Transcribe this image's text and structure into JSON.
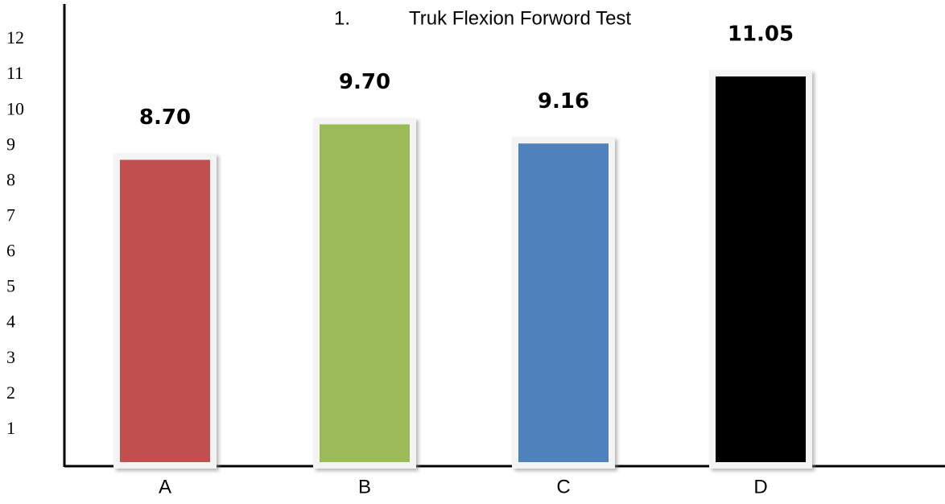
{
  "chart_data": {
    "type": "bar",
    "title_number": "1.",
    "title": "Truk Flexion Forword Test",
    "categories": [
      "A",
      "B",
      "C",
      "D"
    ],
    "values": [
      8.7,
      9.7,
      9.16,
      11.05
    ],
    "value_labels": [
      "8.70",
      "9.70",
      "9.16",
      "11.05"
    ],
    "colors": [
      "#c0504d",
      "#9bbb59",
      "#4f81bd",
      "#000000"
    ],
    "ylim": [
      0,
      13
    ],
    "yticks": [
      1,
      2,
      3,
      4,
      5,
      6,
      7,
      8,
      9,
      10,
      11,
      12
    ],
    "grid": false
  }
}
